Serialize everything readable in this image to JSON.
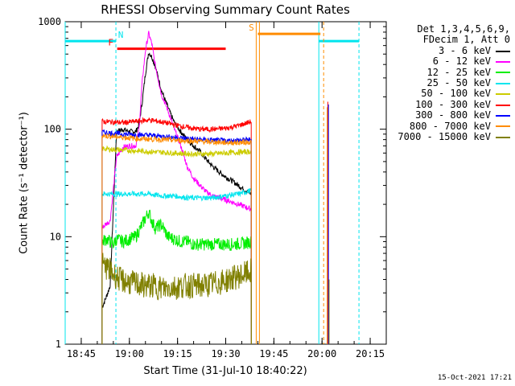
{
  "chart_data": {
    "type": "line",
    "title": "RHESSI Observing Summary Count Rates",
    "xlabel": "Start Time (31-Jul-10 18:40:22)",
    "ylabel": "Count Rate (s⁻¹ detector⁻¹)",
    "yscale": "log",
    "ylim": [
      1,
      1000
    ],
    "xlim_minutes": [
      0,
      100
    ],
    "x_ticks": [
      {
        "m": 5,
        "label": "18:45"
      },
      {
        "m": 20,
        "label": "19:00"
      },
      {
        "m": 35,
        "label": "19:15"
      },
      {
        "m": 50,
        "label": "19:30"
      },
      {
        "m": 65,
        "label": "19:45"
      },
      {
        "m": 80,
        "label": "20:00"
      },
      {
        "m": 95,
        "label": "20:15"
      }
    ],
    "y_ticks": [
      {
        "v": 1,
        "label": "1"
      },
      {
        "v": 10,
        "label": "10"
      },
      {
        "v": 100,
        "label": "100"
      },
      {
        "v": 1000,
        "label": "1000"
      }
    ],
    "legend_header": [
      "Det 1,3,4,5,6,9,",
      "FDecim 1, Att 0"
    ],
    "series": [
      {
        "name": "3 - 6 keV",
        "color": "#000000",
        "x": [
          11.5,
          12.5,
          14.0,
          16,
          18,
          20,
          22,
          23,
          24,
          25,
          26,
          27,
          28,
          29,
          30,
          31,
          32,
          33,
          34,
          36,
          38,
          40,
          42,
          44,
          46,
          48,
          50,
          52,
          54,
          56,
          58
        ],
        "y": [
          2.2,
          2.6,
          3.5,
          95,
          100,
          95,
          95,
          110,
          180,
          330,
          520,
          470,
          390,
          300,
          230,
          190,
          160,
          135,
          115,
          95,
          80,
          70,
          62,
          52,
          45,
          40,
          36,
          33,
          30,
          27,
          25
        ]
      },
      {
        "name": "6 - 12 keV",
        "color": "#ff00ff",
        "x": [
          11.5,
          12.5,
          14,
          16,
          18,
          20,
          22,
          23,
          24,
          25,
          26,
          27,
          28,
          30,
          32,
          34,
          36,
          38,
          40,
          42,
          44,
          46,
          48,
          50,
          52,
          54,
          56,
          58
        ],
        "y": [
          12,
          13,
          14,
          55,
          68,
          70,
          70,
          100,
          280,
          540,
          780,
          620,
          400,
          210,
          150,
          100,
          70,
          45,
          35,
          30,
          26,
          24,
          23,
          22,
          21,
          20,
          19,
          18
        ]
      },
      {
        "name": "12 - 25 keV",
        "color": "#00ee00",
        "x": [
          11.5,
          13,
          15,
          16,
          18,
          20,
          22,
          24,
          26,
          27,
          28,
          30,
          32,
          34,
          36,
          38,
          40,
          44,
          48,
          52,
          56,
          58
        ],
        "y": [
          9,
          9.5,
          8.5,
          9.5,
          9,
          9.5,
          10,
          13,
          17,
          14,
          12,
          13,
          10,
          9.5,
          9,
          9,
          8.5,
          8.5,
          8.5,
          8.5,
          8.7,
          9
        ]
      },
      {
        "name": "25 - 50 keV",
        "color": "#00e5ee",
        "x": [
          11.5,
          14,
          18,
          22,
          26,
          30,
          34,
          38,
          42,
          46,
          50,
          54,
          58
        ],
        "y": [
          25,
          25,
          25,
          25,
          25,
          24,
          24,
          23,
          23,
          23,
          24,
          25,
          27
        ]
      },
      {
        "name": "50 - 100 keV",
        "color": "#cccc00",
        "x": [
          11.5,
          14,
          18,
          22,
          26,
          30,
          34,
          38,
          42,
          46,
          50,
          54,
          58
        ],
        "y": [
          66,
          65,
          64,
          63,
          62,
          61,
          60,
          59,
          59,
          59,
          60,
          61,
          62
        ]
      },
      {
        "name": "100 - 300 keV",
        "color": "#ff0000",
        "x": [
          11.5,
          14,
          18,
          22,
          26,
          30,
          34,
          38,
          42,
          46,
          50,
          54,
          58
        ],
        "y": [
          118,
          117,
          115,
          118,
          122,
          117,
          110,
          104,
          100,
          100,
          102,
          108,
          118
        ]
      },
      {
        "name": "300 - 800 keV",
        "color": "#0000ff",
        "x": [
          11.5,
          14,
          18,
          22,
          26,
          30,
          34,
          38,
          42,
          46,
          50,
          54,
          58
        ],
        "y": [
          94,
          92,
          90,
          89,
          88,
          86,
          84,
          82,
          80,
          79,
          78,
          79,
          80
        ]
      },
      {
        "name": "800 - 7000 keV",
        "color": "#ff8c00",
        "x": [
          11.5,
          14,
          18,
          22,
          26,
          30,
          34,
          38,
          42,
          46,
          50,
          54,
          58
        ],
        "y": [
          87,
          86,
          84,
          82,
          81,
          80,
          79,
          78,
          77,
          76,
          75,
          75,
          76
        ]
      },
      {
        "name": "7000 - 15000 keV",
        "color": "#808000",
        "x": [
          11.5,
          13,
          15,
          17,
          19,
          21,
          23,
          25,
          27,
          29,
          31,
          33,
          35,
          37,
          39,
          41,
          43,
          45,
          47,
          49,
          51,
          53,
          55,
          57,
          58
        ],
        "y": [
          5.5,
          5.2,
          4.5,
          4.0,
          3.8,
          3.7,
          3.6,
          3.5,
          3.5,
          3.4,
          3.3,
          3.4,
          3.4,
          3.5,
          3.5,
          3.5,
          3.5,
          3.6,
          3.7,
          3.8,
          4.0,
          4.2,
          4.4,
          4.6,
          4.8
        ]
      }
    ],
    "annotations": [
      {
        "label": "N",
        "kind": "Night",
        "color": "#00e5ee",
        "segments": [
          [
            0,
            15.8
          ],
          [
            79,
            91.5
          ]
        ],
        "level": 660,
        "dashed_at": [
          15.8,
          91.5
        ],
        "solid_at": [
          0,
          79
        ]
      },
      {
        "label": "F",
        "kind": "Flare",
        "color": "#ff0000",
        "segments": [
          [
            16.2,
            50
          ]
        ],
        "level": 560
      },
      {
        "label": "S",
        "kind": "SAA",
        "color": "#ff8c00",
        "segments": [
          [
            60,
            79.5
          ]
        ],
        "level": 770,
        "dashed_at": [
          80.5
        ],
        "solid_at": [
          59.5,
          60.5
        ]
      }
    ]
  },
  "timestamp": "15-Oct-2021 17:21"
}
